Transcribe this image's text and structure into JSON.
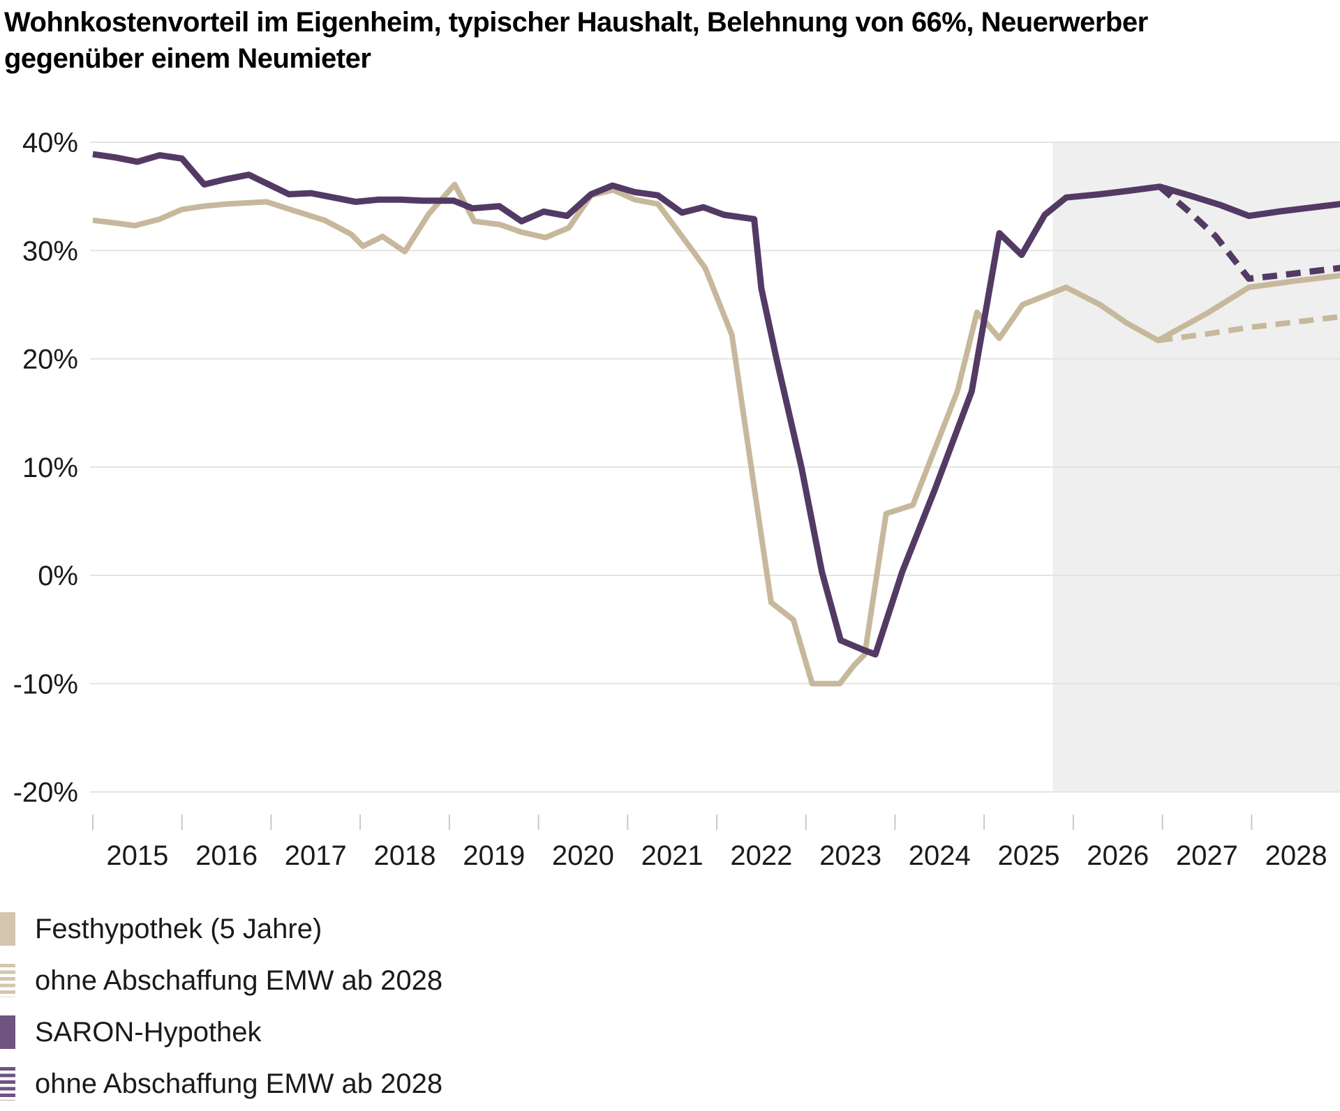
{
  "title_lines": [
    "Wohnkostenvorteil im Eigenheim, typischer Haushalt, Belehnung von 66%, Neuerwerber",
    "gegenüber einem Neumieter"
  ],
  "colors": {
    "beige_line": "#C7B89C",
    "purple_line": "#533A64",
    "beige_legend": "#D3C6AE",
    "purple_legend": "#6F5480",
    "forecast_band": "#EFEFEF",
    "gridline": "#E3E3E3",
    "tick": "#C9C9C9",
    "text": "#1A1A1A"
  },
  "chart_data": {
    "type": "line",
    "title": "Wohnkostenvorteil im Eigenheim, typischer Haushalt, Belehnung von 66%, Neuerwerber gegenüber einem Neumieter",
    "unit": "%",
    "grid": "horizontal",
    "legend_position": "bottom-left",
    "y_axis": {
      "labels": [
        "40%",
        "30%",
        "20%",
        "10%",
        "0%",
        "-10%",
        "-20%"
      ],
      "values": [
        40,
        30,
        20,
        10,
        0,
        -10,
        -20
      ],
      "min": -20,
      "max": 40
    },
    "x_axis": {
      "labels": [
        "2015",
        "2016",
        "2017",
        "2018",
        "2019",
        "2020",
        "2021",
        "2022",
        "2023",
        "2024",
        "2025",
        "2026",
        "2027",
        "2028"
      ],
      "start": 2015,
      "end": 2029
    },
    "forecast_band": {
      "start": 2025.77,
      "end": 2029
    },
    "series": [
      {
        "id": "festhypothek",
        "name": "Festhypothek (5 Jahre)",
        "style": "solid",
        "color_key": "beige",
        "points": [
          [
            2015.0,
            32.8
          ],
          [
            2015.2,
            32.6
          ],
          [
            2015.47,
            32.3
          ],
          [
            2015.75,
            32.9
          ],
          [
            2016.0,
            33.8
          ],
          [
            2016.25,
            34.1
          ],
          [
            2016.5,
            34.3
          ],
          [
            2016.95,
            34.5
          ],
          [
            2017.25,
            33.7
          ],
          [
            2017.6,
            32.8
          ],
          [
            2017.9,
            31.5
          ],
          [
            2018.03,
            30.4
          ],
          [
            2018.25,
            31.3
          ],
          [
            2018.5,
            29.9
          ],
          [
            2018.77,
            33.4
          ],
          [
            2019.06,
            36.1
          ],
          [
            2019.28,
            32.7
          ],
          [
            2019.57,
            32.4
          ],
          [
            2019.81,
            31.7
          ],
          [
            2020.08,
            31.2
          ],
          [
            2020.34,
            32.1
          ],
          [
            2020.59,
            35.1
          ],
          [
            2020.84,
            35.6
          ],
          [
            2021.08,
            34.7
          ],
          [
            2021.34,
            34.3
          ],
          [
            2021.62,
            31.2
          ],
          [
            2021.87,
            28.4
          ],
          [
            2022.17,
            22.2
          ],
          [
            2022.44,
            7.0
          ],
          [
            2022.61,
            -2.5
          ],
          [
            2022.86,
            -4.1
          ],
          [
            2023.07,
            -10.0
          ],
          [
            2023.38,
            -10.0
          ],
          [
            2023.54,
            -8.3
          ],
          [
            2023.66,
            -7.3
          ],
          [
            2023.9,
            5.7
          ],
          [
            2024.2,
            6.5
          ],
          [
            2024.7,
            17.0
          ],
          [
            2024.92,
            24.3
          ],
          [
            2025.17,
            21.9
          ],
          [
            2025.43,
            25.0
          ],
          [
            2025.92,
            26.6
          ],
          [
            2026.3,
            25.0
          ],
          [
            2026.6,
            23.3
          ],
          [
            2026.95,
            21.7
          ],
          [
            2027.5,
            24.2
          ],
          [
            2027.97,
            26.6
          ],
          [
            2028.5,
            27.2
          ],
          [
            2029.0,
            27.7
          ]
        ]
      },
      {
        "id": "festhypothek-ohne-emw",
        "name": "ohne Abschaffung EMW ab 2028",
        "style": "dashed",
        "color_key": "beige",
        "points": [
          [
            2026.95,
            21.7
          ],
          [
            2027.5,
            22.3
          ],
          [
            2027.97,
            22.9
          ],
          [
            2028.5,
            23.4
          ],
          [
            2029.0,
            23.9
          ]
        ]
      },
      {
        "id": "saron",
        "name": "SARON-Hypothek",
        "style": "solid",
        "color_key": "purple",
        "points": [
          [
            2015.0,
            38.9
          ],
          [
            2015.25,
            38.6
          ],
          [
            2015.5,
            38.2
          ],
          [
            2015.75,
            38.8
          ],
          [
            2016.0,
            38.5
          ],
          [
            2016.25,
            36.1
          ],
          [
            2016.5,
            36.6
          ],
          [
            2016.75,
            37.0
          ],
          [
            2017.0,
            36.0
          ],
          [
            2017.2,
            35.2
          ],
          [
            2017.45,
            35.3
          ],
          [
            2017.7,
            34.9
          ],
          [
            2017.95,
            34.5
          ],
          [
            2018.2,
            34.7
          ],
          [
            2018.45,
            34.7
          ],
          [
            2018.7,
            34.6
          ],
          [
            2019.05,
            34.6
          ],
          [
            2019.26,
            33.9
          ],
          [
            2019.56,
            34.1
          ],
          [
            2019.81,
            32.7
          ],
          [
            2020.06,
            33.6
          ],
          [
            2020.32,
            33.2
          ],
          [
            2020.59,
            35.2
          ],
          [
            2020.83,
            36.0
          ],
          [
            2021.08,
            35.4
          ],
          [
            2021.34,
            35.1
          ],
          [
            2021.61,
            33.5
          ],
          [
            2021.85,
            34.0
          ],
          [
            2022.08,
            33.3
          ],
          [
            2022.42,
            32.9
          ],
          [
            2022.5,
            26.5
          ],
          [
            2022.67,
            20.0
          ],
          [
            2022.95,
            10.0
          ],
          [
            2023.18,
            0.3
          ],
          [
            2023.39,
            -6.0
          ],
          [
            2023.65,
            -6.9
          ],
          [
            2023.78,
            -7.3
          ],
          [
            2024.08,
            0.3
          ],
          [
            2024.45,
            8.0
          ],
          [
            2024.86,
            17.0
          ],
          [
            2025.17,
            31.6
          ],
          [
            2025.42,
            29.6
          ],
          [
            2025.68,
            33.3
          ],
          [
            2025.92,
            34.9
          ],
          [
            2026.3,
            35.2
          ],
          [
            2026.6,
            35.5
          ],
          [
            2026.97,
            35.9
          ],
          [
            2027.3,
            35.1
          ],
          [
            2027.65,
            34.2
          ],
          [
            2027.97,
            33.2
          ],
          [
            2028.3,
            33.6
          ],
          [
            2028.6,
            33.9
          ],
          [
            2029.0,
            34.3
          ]
        ]
      },
      {
        "id": "saron-ohne-emw",
        "name": "ohne Abschaffung EMW ab 2028",
        "style": "dashed",
        "color_key": "purple",
        "points": [
          [
            2026.97,
            35.9
          ],
          [
            2027.3,
            33.6
          ],
          [
            2027.6,
            31.3
          ],
          [
            2027.97,
            27.4
          ],
          [
            2028.3,
            27.7
          ],
          [
            2028.6,
            28.0
          ],
          [
            2029.0,
            28.4
          ]
        ]
      }
    ],
    "legend": [
      {
        "label": "Festhypothek (5 Jahre)",
        "swatch": "solid-beige"
      },
      {
        "label": "ohne Abschaffung EMW ab 2028",
        "swatch": "striped-beige"
      },
      {
        "label": "SARON-Hypothek",
        "swatch": "solid-purple"
      },
      {
        "label": "ohne Abschaffung EMW ab 2028",
        "swatch": "striped-purple"
      }
    ]
  }
}
